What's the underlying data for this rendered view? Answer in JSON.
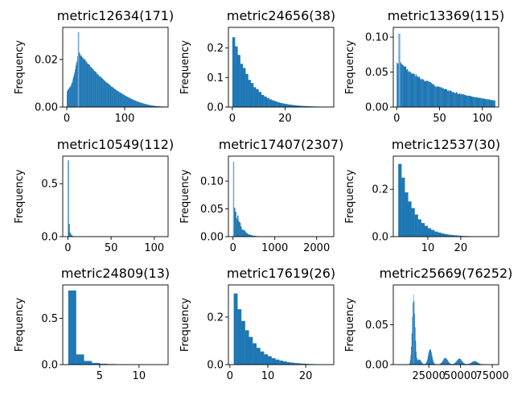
{
  "figure": {
    "background": "#ffffff",
    "bar_color": "#1f77b4",
    "spike_color": "#6fa8dc"
  },
  "chart_data": [
    {
      "type": "bar",
      "title": "metric12634(171)",
      "ylabel": "Frequency",
      "xlim": [
        -7,
        175
      ],
      "ylim": [
        0,
        0.0335
      ],
      "xticks": [
        0,
        100
      ],
      "xtick_labels": [
        "0",
        "100"
      ],
      "yticks": [
        0,
        0.02
      ],
      "ytick_labels": [
        "0.00",
        "0.02"
      ],
      "shape": "peak-then-decay",
      "bins": {
        "x0": 0,
        "x1": 171,
        "n": 170,
        "start": 0.0065,
        "peak": 0.023,
        "peak_at": 20,
        "spike": 0.0315,
        "spike_at": 20,
        "min": 0.0085,
        "min_at": 6,
        "end": 0.0002
      }
    },
    {
      "type": "bar",
      "title": "metric24656(38)",
      "ylabel": "Frequency",
      "xlim": [
        -1.5,
        38.5
      ],
      "ylim": [
        0,
        0.27
      ],
      "xticks": [
        0,
        20
      ],
      "xtick_labels": [
        "0",
        "20"
      ],
      "yticks": [
        0,
        0.1,
        0.2
      ],
      "ytick_labels": [
        "0.0",
        "0.1",
        "0.2"
      ],
      "shape": "decay",
      "bins": {
        "x0": 0,
        "x1": 38,
        "n": 38,
        "start": 0.243,
        "decay": 0.19,
        "noise": 0.06
      }
    },
    {
      "type": "bar",
      "title": "metric13369(115)",
      "ylabel": "Frequency",
      "xlim": [
        -4,
        119
      ],
      "ylim": [
        0,
        0.114
      ],
      "xticks": [
        0,
        50,
        100
      ],
      "xtick_labels": [
        "0",
        "50",
        "100"
      ],
      "yticks": [
        0,
        0.05,
        0.1
      ],
      "ytick_labels": [
        "0.00",
        "0.05",
        "0.10"
      ],
      "shape": "decay",
      "bins": {
        "x0": 0,
        "x1": 115,
        "n": 115,
        "start": 0.066,
        "decay": 0.062,
        "spike": 0.105,
        "spike_at": 3,
        "noise": 0.1
      }
    },
    {
      "type": "bar",
      "title": "metric10549(112)",
      "ylabel": "Frequency",
      "xlim": [
        -6,
        116
      ],
      "ylim": [
        0,
        0.76
      ],
      "xticks": [
        0,
        50,
        100
      ],
      "xtick_labels": [
        "0",
        "50",
        "100"
      ],
      "yticks": [
        0,
        0.5
      ],
      "ytick_labels": [
        "0.0",
        "0.5"
      ],
      "shape": "spike",
      "bins": {
        "x0": 0,
        "x1": 112,
        "n": 112,
        "values_head": [
          0.72,
          0.12,
          0.04,
          0.022,
          0.012,
          0.007,
          0.004
        ],
        "tail": 0.002
      }
    },
    {
      "type": "bar",
      "title": "metric17407(2307)",
      "ylabel": "Frequency",
      "xlim": [
        -110,
        2410
      ],
      "ylim": [
        0,
        0.145
      ],
      "xticks": [
        0,
        1000,
        2000
      ],
      "xtick_labels": [
        "0",
        "1000",
        "2000"
      ],
      "yticks": [
        0,
        0.05,
        0.1
      ],
      "ytick_labels": [
        "0.00",
        "0.05",
        "0.10"
      ],
      "shape": "decay",
      "bins": {
        "x0": 0,
        "x1": 2307,
        "n": 90,
        "start": 0.07,
        "decay": 0.55,
        "spike": 0.135,
        "spike_at": 0,
        "noise": 0.5
      }
    },
    {
      "type": "bar",
      "title": "metric12537(30)",
      "ylabel": "Frequency",
      "xlim": [
        -0.5,
        31.5
      ],
      "ylim": [
        0,
        0.34
      ],
      "xticks": [
        10,
        20
      ],
      "xtick_labels": [
        "10",
        "20"
      ],
      "yticks": [
        0,
        0.2
      ],
      "ytick_labels": [
        "0.0",
        "0.2"
      ],
      "shape": "decay",
      "bins": {
        "x0": 1,
        "x1": 30,
        "n": 29,
        "start": 0.31,
        "decay": 0.22,
        "noise": 0.05
      }
    },
    {
      "type": "bar",
      "title": "metric24809(13)",
      "ylabel": "Frequency",
      "xlim": [
        0.3,
        13.7
      ],
      "ylim": [
        0,
        0.86
      ],
      "xticks": [
        5,
        10
      ],
      "xtick_labels": [
        "5",
        "10"
      ],
      "yticks": [
        0,
        0.5
      ],
      "ytick_labels": [
        "0.0",
        "0.5"
      ],
      "shape": "explicit",
      "bins": {
        "x0": 1,
        "x1": 13,
        "n": 12,
        "values": [
          0.8,
          0.11,
          0.04,
          0.018,
          0.01,
          0.006,
          0.004,
          0.003,
          0.002,
          0.001,
          0.001,
          0.001
        ]
      }
    },
    {
      "type": "bar",
      "title": "metric17619(26)",
      "ylabel": "Frequency",
      "xlim": [
        -0.4,
        27.4
      ],
      "ylim": [
        0,
        0.335
      ],
      "xticks": [
        0,
        10,
        20
      ],
      "xtick_labels": [
        "0",
        "10",
        "20"
      ],
      "yticks": [
        0,
        0.2
      ],
      "ytick_labels": [
        "0.0",
        "0.2"
      ],
      "shape": "decay",
      "bins": {
        "x0": 1,
        "x1": 26,
        "n": 25,
        "start": 0.3,
        "decay": 0.19,
        "noise": 0.05
      }
    },
    {
      "type": "bar",
      "title": "metric25669(76252)",
      "ylabel": "Frequency",
      "xlim": [
        -3000,
        80000
      ],
      "ylim": [
        0,
        0.1
      ],
      "xticks": [
        25000,
        50000,
        75000
      ],
      "xtick_labels": [
        "25000",
        "50000",
        "75000"
      ],
      "yticks": [
        0,
        0.05
      ],
      "ytick_labels": [
        "0.00",
        "0.05"
      ],
      "shape": "bumps",
      "bins": {
        "x0": 0,
        "x1": 76252,
        "n": 180,
        "bumps": [
          [
            13000,
            0.082,
            1100
          ],
          [
            17500,
            0.006,
            1400
          ],
          [
            26000,
            0.019,
            1400
          ],
          [
            38000,
            0.008,
            1800
          ],
          [
            49000,
            0.007,
            2000
          ],
          [
            61000,
            0.004,
            2200
          ]
        ],
        "spike": 0.088,
        "spike_at": 13000,
        "floor": 0.0005
      }
    }
  ]
}
